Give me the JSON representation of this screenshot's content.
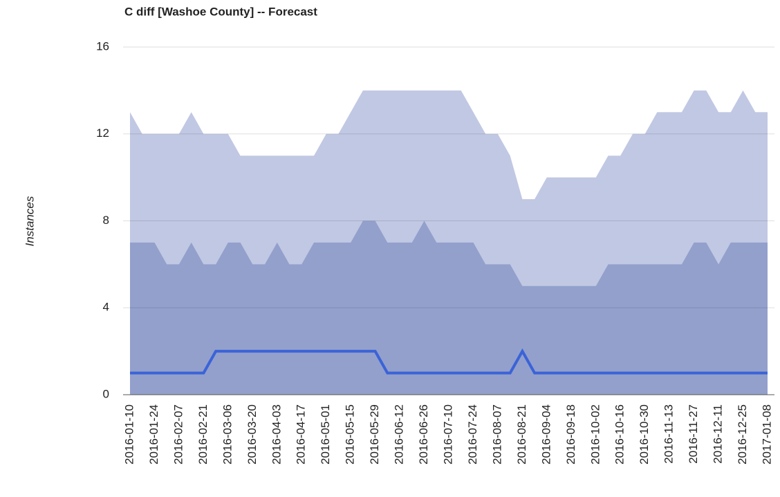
{
  "chart_data": {
    "type": "area-line",
    "title": "C diff [Washoe County] -- Forecast",
    "y_label": "Instances",
    "categories": [
      "2016-01-10",
      null,
      "2016-01-24",
      null,
      "2016-02-07",
      null,
      "2016-02-21",
      null,
      "2016-03-06",
      null,
      "2016-03-20",
      null,
      "2016-04-03",
      null,
      "2016-04-17",
      null,
      "2016-05-01",
      null,
      "2016-05-15",
      null,
      "2016-05-29",
      null,
      "2016-06-12",
      null,
      "2016-06-26",
      null,
      "2016-07-10",
      null,
      "2016-07-24",
      null,
      "2016-08-07",
      null,
      "2016-08-21",
      null,
      "2016-09-04",
      null,
      "2016-09-18",
      null,
      "2016-10-02",
      null,
      "2016-10-16",
      null,
      "2016-10-30",
      null,
      "2016-11-13",
      null,
      "2016-11-27",
      null,
      "2016-12-11",
      null,
      "2016-12-25",
      null,
      "2017-01-08"
    ],
    "series": [
      {
        "kind": "area",
        "color": "#c1c8e3",
        "values": [
          13,
          12,
          12,
          12,
          12,
          13,
          12,
          12,
          12,
          11,
          11,
          11,
          11,
          11,
          11,
          11,
          12,
          12,
          13,
          14,
          14,
          14,
          14,
          14,
          14,
          14,
          14,
          14,
          13,
          12,
          12,
          11,
          9,
          9,
          10,
          10,
          10,
          10,
          10,
          11,
          11,
          12,
          12,
          13,
          13,
          13,
          14,
          14,
          13,
          13,
          14,
          13,
          13
        ]
      },
      {
        "kind": "area",
        "color": "#93a0cc",
        "values": [
          7,
          7,
          7,
          6,
          6,
          7,
          6,
          6,
          7,
          7,
          6,
          6,
          7,
          6,
          6,
          7,
          7,
          7,
          7,
          8,
          8,
          7,
          7,
          7,
          8,
          7,
          7,
          7,
          7,
          6,
          6,
          6,
          5,
          5,
          5,
          5,
          5,
          5,
          5,
          6,
          6,
          6,
          6,
          6,
          6,
          6,
          7,
          7,
          6,
          7,
          7,
          7,
          7
        ]
      },
      {
        "kind": "line",
        "color": "#3b63d8",
        "values": [
          1,
          1,
          1,
          1,
          1,
          1,
          1,
          2,
          2,
          2,
          2,
          2,
          2,
          2,
          2,
          2,
          2,
          2,
          2,
          2,
          2,
          1,
          1,
          1,
          1,
          1,
          1,
          1,
          1,
          1,
          1,
          1,
          2,
          1,
          1,
          1,
          1,
          1,
          1,
          1,
          1,
          1,
          1,
          1,
          1,
          1,
          1,
          1,
          1,
          1,
          1,
          1,
          1
        ]
      }
    ],
    "ylim": [
      0,
      16
    ],
    "yticks": [
      0,
      4,
      8,
      12,
      16
    ],
    "grid": true
  }
}
